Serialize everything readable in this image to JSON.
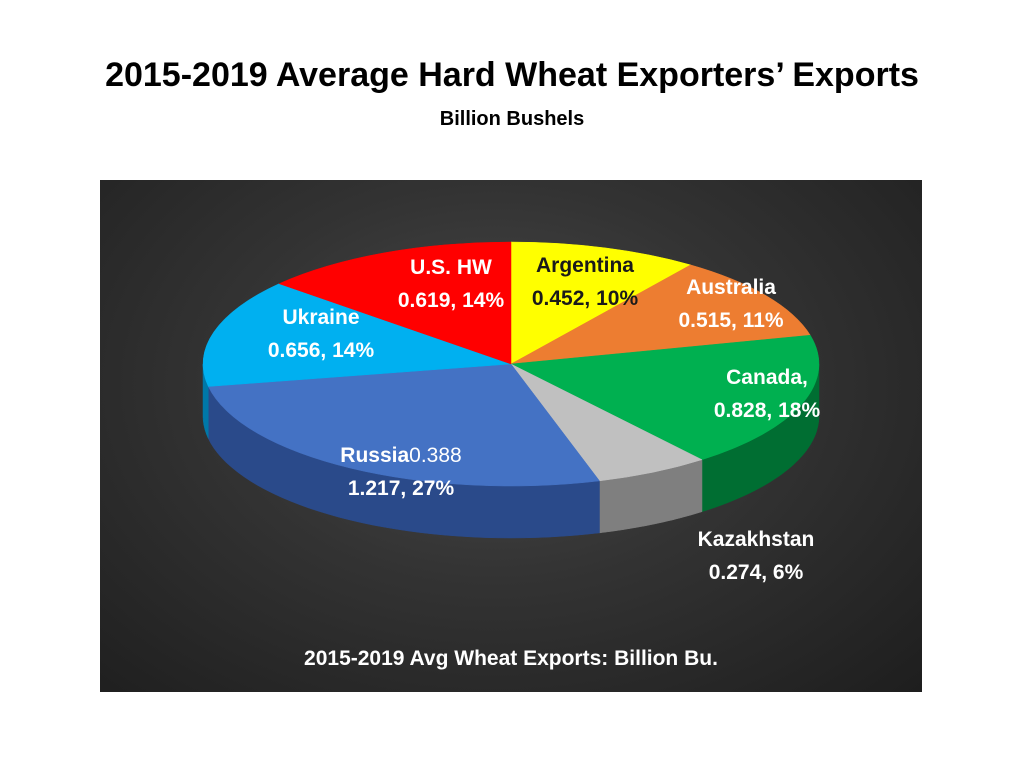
{
  "page": {
    "title": "2015-2019 Average Hard Wheat Exporters’ Exports",
    "subtitle": "Billion Bushels"
  },
  "chart_data": {
    "type": "pie",
    "caption": "2015-2019 Avg Wheat Exports: Billion Bu.",
    "slices": [
      {
        "name": "Argentina",
        "value": 0.452,
        "value_label": "0.452, 10%",
        "color": "#ffff00",
        "side_color": "#b3b300",
        "text_color": "#1a1a1a"
      },
      {
        "name": "Australia",
        "value": 0.515,
        "value_label": "0.515, 11%",
        "color": "#ed7d31",
        "side_color": "#a6561f",
        "text_color": "#ffffff"
      },
      {
        "name": "Canada,",
        "value": 0.828,
        "value_label": "0.828, 18%",
        "color": "#00b050",
        "side_color": "#006e32",
        "text_color": "#ffffff"
      },
      {
        "name": "Kazakhstan",
        "value": 0.274,
        "value_label": "0.274, 6%",
        "color": "#c0c0c0",
        "side_color": "#7f7f7f",
        "text_color": "#ffffff"
      },
      {
        "name": "Russia",
        "name_suffix": "0.388",
        "value": 1.217,
        "value_label": "1.217, 27%",
        "color": "#4472c4",
        "side_color": "#2a4a8a",
        "text_color": "#ffffff"
      },
      {
        "name": "Ukraine",
        "value": 0.656,
        "value_label": "0.656, 14%",
        "color": "#00b0f0",
        "side_color": "#0078a8",
        "text_color": "#ffffff"
      },
      {
        "name": "U.S. HW",
        "value": 0.619,
        "value_label": "0.619, 14%",
        "color": "#ff0000",
        "side_color": "#a80000",
        "text_color": "#ffffff"
      }
    ]
  }
}
